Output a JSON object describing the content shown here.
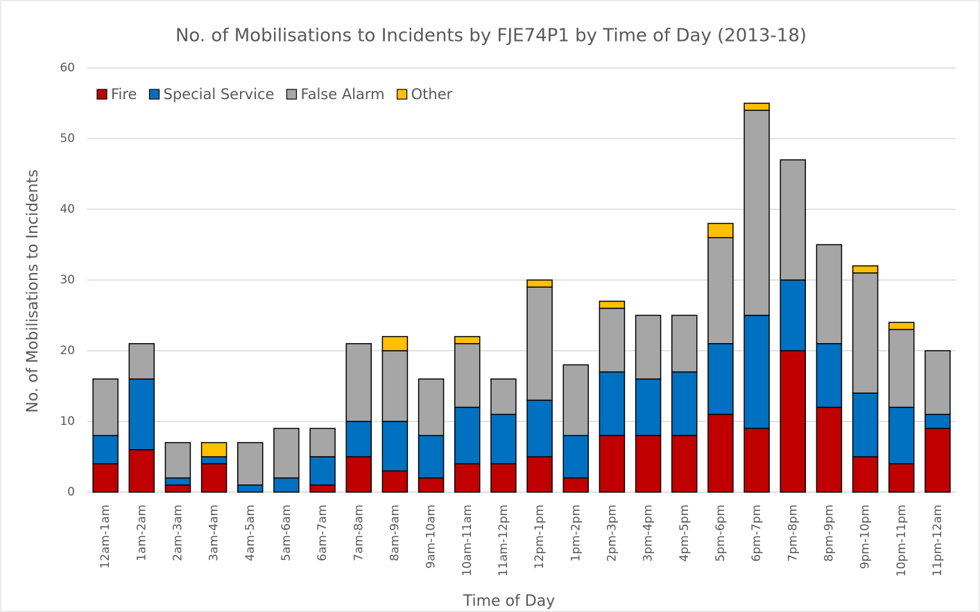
{
  "chart_data": {
    "type": "stacked_bar",
    "title": "No. of Mobilisations to Incidents by FJE74P1 by Time of Day (2013-18)",
    "x_label": "Time of Day",
    "y_label": "No. of Mobilisations to Incidents",
    "categories": [
      "12am-1am",
      "1am-2am",
      "2am-3am",
      "3am-4am",
      "4am-5am",
      "5am-6am",
      "6am-7am",
      "7am-8am",
      "8am-9am",
      "9am-10am",
      "10am-11am",
      "11am-12pm",
      "12pm-1pm",
      "1pm-2pm",
      "2pm-3pm",
      "3pm-4pm",
      "4pm-5pm",
      "5pm-6pm",
      "6pm-7pm",
      "7pm-8pm",
      "8pm-9pm",
      "9pm-10pm",
      "10pm-11pm",
      "11pm-12am"
    ],
    "series": [
      {
        "name": "Fire",
        "color": "#c00000",
        "values": [
          4,
          6,
          1,
          4,
          0,
          0,
          1,
          5,
          3,
          2,
          4,
          4,
          5,
          2,
          8,
          8,
          8,
          11,
          9,
          20,
          12,
          5,
          4,
          9
        ]
      },
      {
        "name": "Special Service",
        "color": "#0070c0",
        "values": [
          4,
          10,
          1,
          1,
          1,
          2,
          4,
          5,
          7,
          6,
          8,
          7,
          8,
          6,
          9,
          8,
          9,
          10,
          16,
          10,
          9,
          9,
          8,
          2
        ]
      },
      {
        "name": "False Alarm",
        "color": "#a6a6a6",
        "values": [
          8,
          5,
          5,
          0,
          6,
          7,
          4,
          11,
          10,
          8,
          9,
          5,
          16,
          10,
          9,
          9,
          8,
          15,
          29,
          17,
          14,
          17,
          11,
          9
        ]
      },
      {
        "name": "Other",
        "color": "#ffc000",
        "values": [
          0,
          0,
          0,
          2,
          0,
          0,
          0,
          0,
          2,
          0,
          1,
          0,
          1,
          0,
          1,
          0,
          0,
          2,
          1,
          0,
          0,
          1,
          1,
          0
        ]
      }
    ],
    "ylim": [
      0,
      60
    ],
    "yticks": [
      0,
      10,
      20,
      30,
      40,
      50,
      60
    ],
    "grid": true,
    "legend": "top-left"
  }
}
